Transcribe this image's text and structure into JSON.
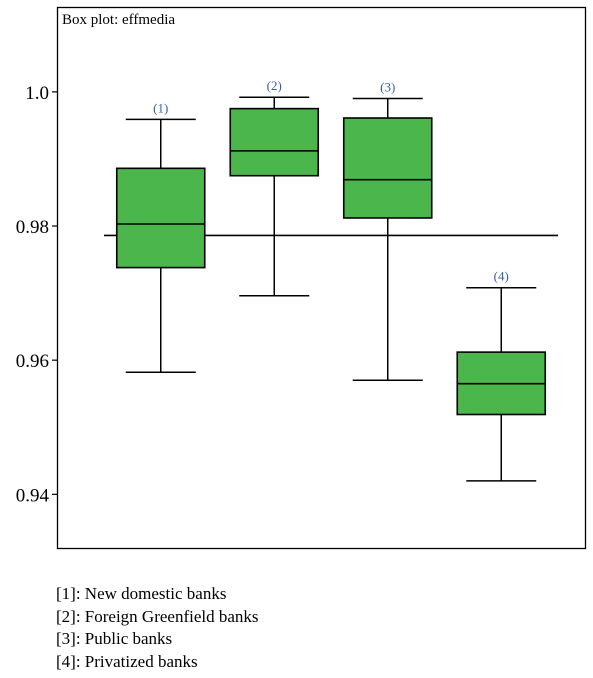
{
  "chart_data": {
    "type": "boxplot",
    "title": "Box plot: effmedia",
    "xlabel": "",
    "ylabel": "",
    "ylim": [
      0.932,
      1.0125
    ],
    "yticks": [
      1.0,
      0.98,
      0.96,
      0.94
    ],
    "ytick_labels": [
      "1.0",
      "0.98",
      "0.96",
      "0.94"
    ],
    "reference_line": 0.9786,
    "grid": false,
    "colors": {
      "box_fill": "#4bb64b",
      "box_stroke": "#000000",
      "number_label": "#3a5fa8"
    },
    "boxes": [
      {
        "label": "(1)",
        "min": 0.9582,
        "q1": 0.9738,
        "median": 0.9803,
        "q3": 0.9886,
        "max": 0.9959
      },
      {
        "label": "(2)",
        "min": 0.9696,
        "q1": 0.9875,
        "median": 0.9912,
        "q3": 0.9975,
        "max": 0.9992
      },
      {
        "label": "(3)",
        "min": 0.957,
        "q1": 0.9812,
        "median": 0.9869,
        "q3": 0.9961,
        "max": 0.999
      },
      {
        "label": "(4)",
        "min": 0.942,
        "q1": 0.9519,
        "median": 0.9565,
        "q3": 0.9612,
        "max": 0.9708
      }
    ]
  },
  "legend": [
    "[1]: New domestic banks",
    "[2]: Foreign Greenfield banks",
    "[3]: Public banks",
    "[4]: Privatized banks"
  ]
}
